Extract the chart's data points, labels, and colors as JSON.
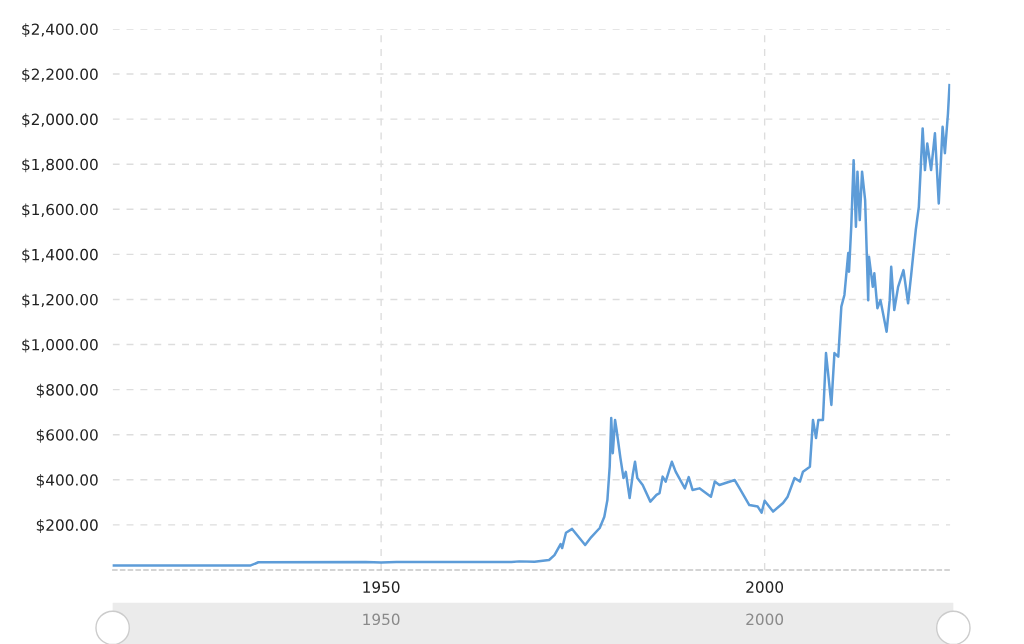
{
  "chart_data": [
    {
      "type": "line",
      "x": [
        1915,
        1933,
        1934,
        1948,
        1950,
        1952,
        1967,
        1968,
        1970,
        1971.9,
        1972.6,
        1973.4,
        1973.6,
        1974.1,
        1974.9,
        1976.6,
        1977.4,
        1978.5,
        1979.1,
        1979.5,
        1979.8,
        1980.0,
        1980.2,
        1980.5,
        1980.7,
        1981.2,
        1981.6,
        1981.9,
        1982.4,
        1982.8,
        1983.1,
        1983.4,
        1984.1,
        1985.1,
        1985.9,
        1986.3,
        1986.7,
        1987.1,
        1987.9,
        1988.4,
        1989.6,
        1990.1,
        1990.6,
        1991.5,
        1993.0,
        1993.5,
        1994.1,
        1996.1,
        1996.7,
        1998.0,
        1999.1,
        1999.6,
        2000.0,
        2001.1,
        2002.4,
        2003.0,
        2003.9,
        2004.6,
        2005.0,
        2005.9,
        2006.3,
        2006.7,
        2007.0,
        2007.6,
        2008.0,
        2008.7,
        2009.1,
        2009.6,
        2010.0,
        2010.4,
        2010.9,
        2011.0,
        2011.3,
        2011.6,
        2011.9,
        2012.1,
        2012.4,
        2012.7,
        2013.1,
        2013.5,
        2013.6,
        2014.1,
        2014.3,
        2014.7,
        2015.1,
        2015.9,
        2016.3,
        2016.5,
        2016.9,
        2017.4,
        2018.1,
        2018.7,
        2019.1,
        2019.7,
        2020.1,
        2020.6,
        2020.9,
        2021.2,
        2021.7,
        2022.2,
        2022.7,
        2023.2,
        2023.5,
        2023.9,
        2024.1
      ],
      "series": [
        {
          "color": "#5d9cd8",
          "values": [
            20,
            20,
            34,
            35,
            33,
            35,
            35,
            38,
            36,
            44,
            66,
            115,
            97,
            165,
            182,
            111,
            146,
            186,
            236,
            310,
            458,
            674,
            518,
            665,
            621,
            496,
            408,
            435,
            319,
            421,
            480,
            408,
            377,
            303,
            333,
            341,
            414,
            392,
            480,
            436,
            362,
            412,
            355,
            362,
            325,
            392,
            377,
            399,
            364,
            288,
            281,
            254,
            307,
            259,
            297,
            325,
            408,
            392,
            436,
            458,
            665,
            585,
            665,
            665,
            962,
            732,
            962,
            946,
            1168,
            1220,
            1406,
            1323,
            1530,
            1818,
            1523,
            1767,
            1552,
            1767,
            1641,
            1197,
            1390,
            1256,
            1316,
            1161,
            1197,
            1057,
            1197,
            1345,
            1153,
            1256,
            1330,
            1183,
            1308,
            1508,
            1611,
            1959,
            1774,
            1892,
            1774,
            1937,
            1626,
            1966,
            1849,
            2025,
            2151
          ]
        }
      ],
      "xlim": [
        1915,
        2024.2
      ],
      "xticks": [
        1950,
        2000
      ],
      "ylim": [
        0,
        2400
      ],
      "yticks": [
        {
          "value": 200,
          "label": "$200.00"
        },
        {
          "value": 400,
          "label": "$400.00"
        },
        {
          "value": 600,
          "label": "$600.00"
        },
        {
          "value": 800,
          "label": "$800.00"
        },
        {
          "value": 1000,
          "label": "$1,000.00"
        },
        {
          "value": 1200,
          "label": "$1,200.00"
        },
        {
          "value": 1400,
          "label": "$1,400.00"
        },
        {
          "value": 1600,
          "label": "$1,600.00"
        },
        {
          "value": 1800,
          "label": "$1,800.00"
        },
        {
          "value": 2000,
          "label": "$2,000.00"
        },
        {
          "value": 2200,
          "label": "$2,200.00"
        },
        {
          "value": 2400,
          "label": "$2,400.00"
        }
      ],
      "grid": true,
      "x2lim": [
        1915,
        2024.2
      ],
      "x2ticks": [
        1950,
        2000
      ],
      "line_style": "solid",
      "marker": "none"
    }
  ]
}
